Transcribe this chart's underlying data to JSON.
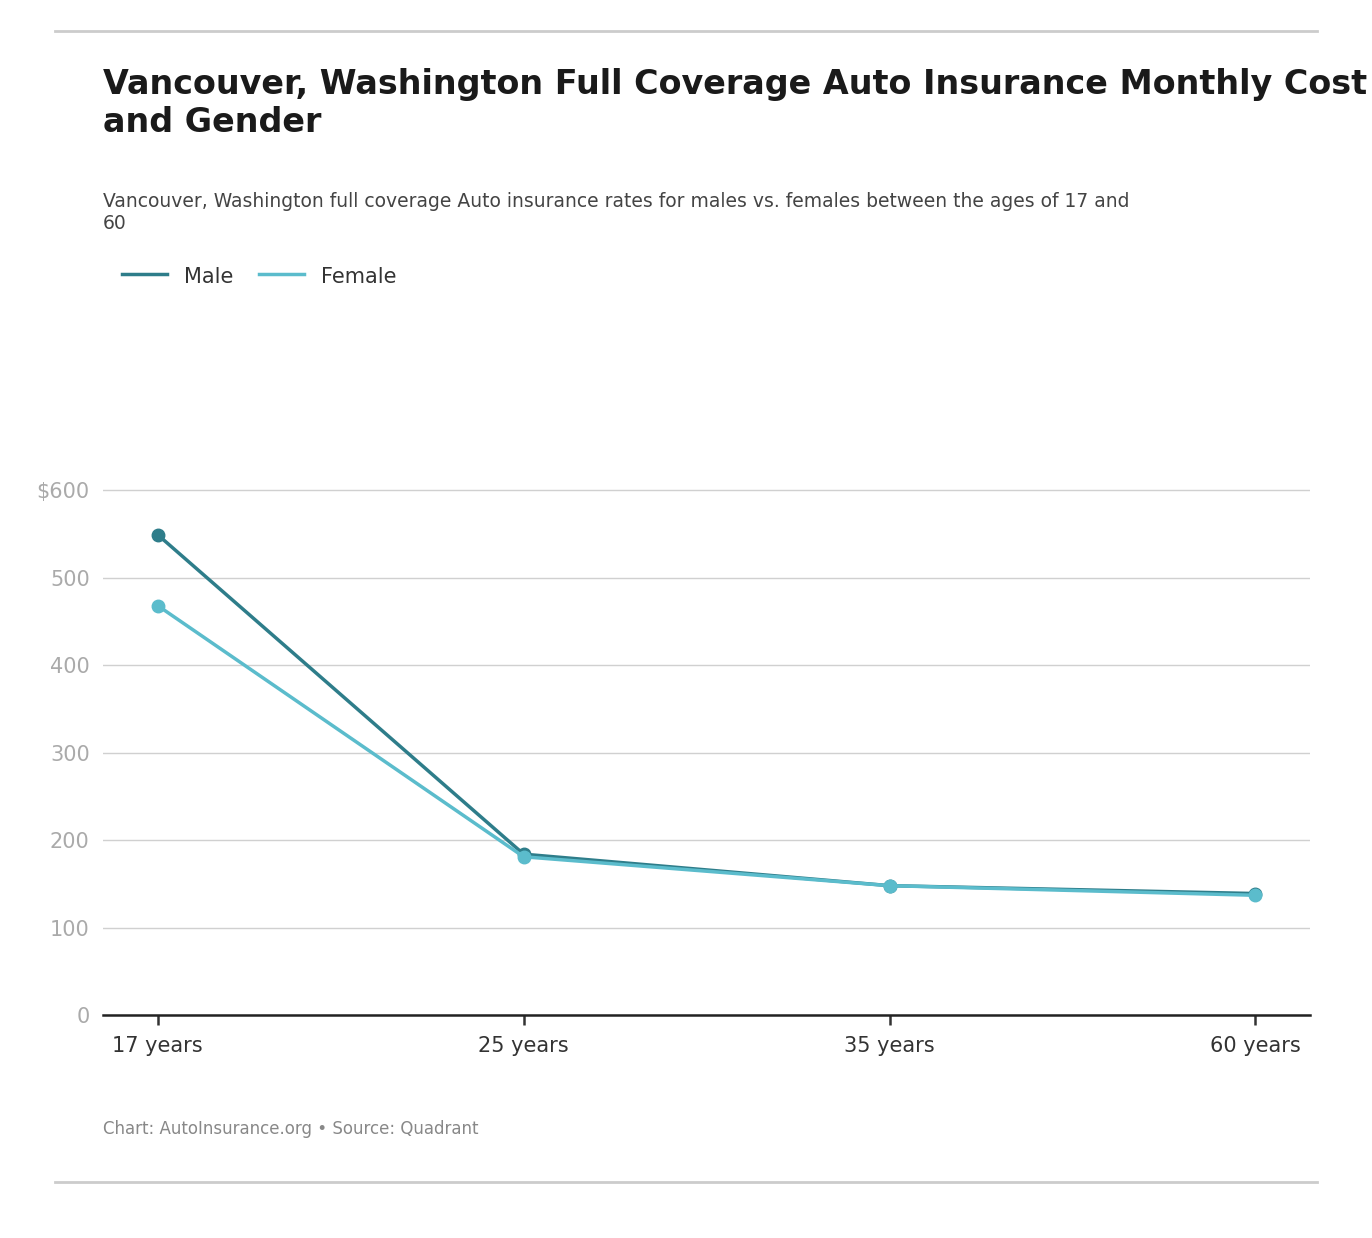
{
  "title": "Vancouver, Washington Full Coverage Auto Insurance Monthly Cost by Age\nand Gender",
  "subtitle": "Vancouver, Washington full coverage Auto insurance rates for males vs. females between the ages of 17 and\n60",
  "caption": "Chart: AutoInsurance.org • Source: Quadrant",
  "x_labels": [
    "17 years",
    "25 years",
    "35 years",
    "60 years"
  ],
  "x_positions": [
    0,
    1,
    2,
    3
  ],
  "male_values": [
    549,
    184,
    148,
    139
  ],
  "female_values": [
    468,
    181,
    148,
    137
  ],
  "male_color": "#2e7d8a",
  "female_color": "#5bbccc",
  "background_color": "#ffffff",
  "grid_color": "#d0d0d0",
  "y_ticks": [
    0,
    100,
    200,
    300,
    400,
    500,
    600
  ],
  "ylim": [
    0,
    665
  ],
  "title_fontsize": 24,
  "subtitle_fontsize": 13.5,
  "caption_fontsize": 12,
  "legend_fontsize": 15,
  "tick_fontsize": 15,
  "marker_size": 9,
  "line_width": 2.5
}
